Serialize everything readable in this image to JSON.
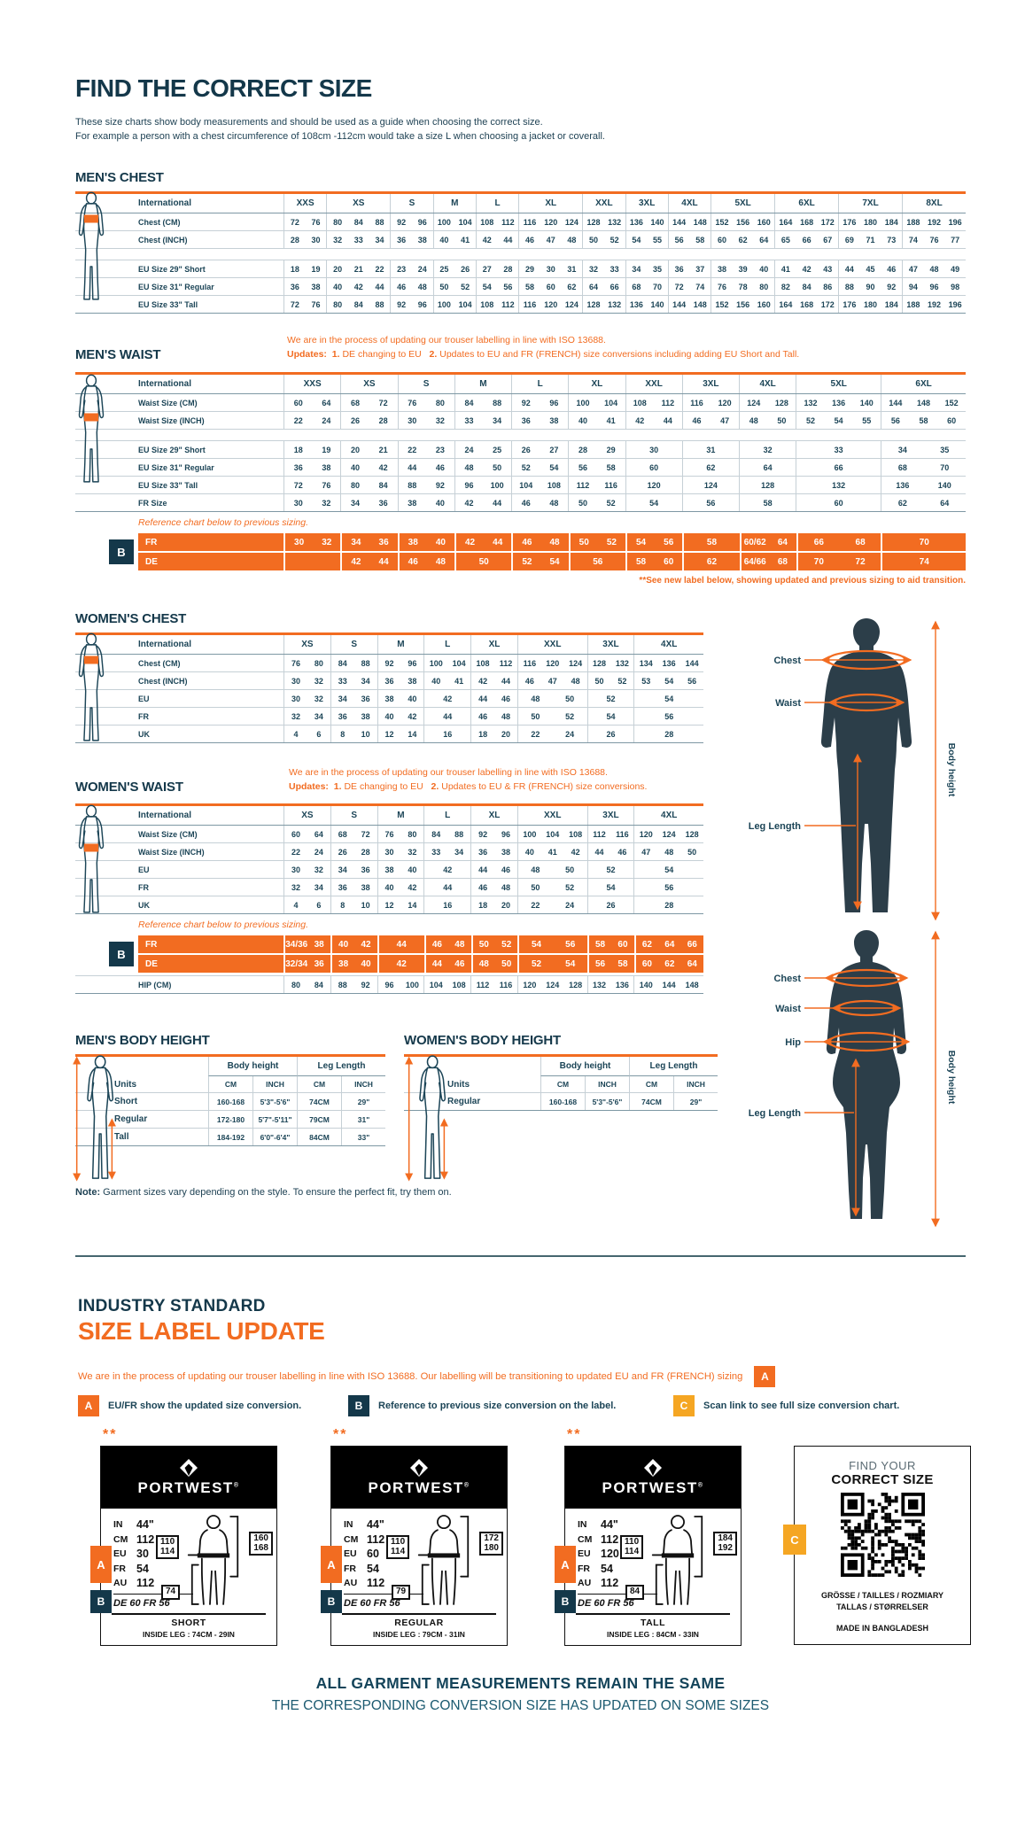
{
  "page": {
    "title": "FIND THE CORRECT SIZE",
    "intro1": "These size charts show body measurements and should be used as a guide when choosing the correct size.",
    "intro2": "For example a person with a chest circumference of 108cm -112cm would take a size L when choosing a jacket or coverall.",
    "note_bold": "Note:",
    "note_rest": " Garment sizes vary depending on the style. To ensure the perfect fit, try them on."
  },
  "colors": {
    "navy": "#14384A",
    "orange": "#F26C21",
    "amber": "#F5A623",
    "line_light": "#C6D0D6",
    "line_dark": "#7E98A4"
  },
  "mens_chest": {
    "title": "MEN'S CHEST",
    "header_label": "International",
    "columns": [
      "XXS",
      "XS",
      "S",
      "M",
      "L",
      "XL",
      "XXL",
      "3XL",
      "4XL",
      "5XL",
      "6XL",
      "7XL",
      "8XL"
    ],
    "spans": [
      2,
      3,
      2,
      2,
      2,
      3,
      2,
      2,
      2,
      3,
      3,
      3,
      3
    ],
    "rows": [
      {
        "label": "Chest (CM)",
        "cells": [
          "72 76",
          "80 84 88",
          "92 96",
          "100 104",
          "108 112",
          "116 120 124",
          "128 132",
          "136 140",
          "144 148",
          "152 156 160",
          "164 168 172",
          "176 180 184",
          "188 192 196"
        ]
      },
      {
        "label": "Chest (INCH)",
        "cells": [
          "28 30",
          "32 33 34",
          "36 38",
          "40 41",
          "42 44",
          "46 47 48",
          "50 52",
          "54 55",
          "56 58",
          "60 62 64",
          "65 66 67",
          "69 71 73",
          "74 76 77"
        ]
      },
      {
        "spacer": true
      },
      {
        "label": "EU Size 29\" Short",
        "cells": [
          "18 19",
          "20 21 22",
          "23 24",
          "25 26",
          "27 28",
          "29 30 31",
          "32 33",
          "34 35",
          "36 37",
          "38 39 40",
          "41 42 43",
          "44 45 46",
          "47 48 49"
        ]
      },
      {
        "label": "EU Size 31\" Regular",
        "cells": [
          "36 38",
          "40 42 44",
          "46 48",
          "50 52",
          "54 56",
          "58 60 62",
          "64 66",
          "68 70",
          "72 74",
          "76 78 80",
          "82 84 86",
          "88 90 92",
          "94 96 98"
        ]
      },
      {
        "label": "EU Size 33\" Tall",
        "cells": [
          "72 76",
          "80 84 88",
          "92 96",
          "100 104",
          "108 112",
          "116 120 124",
          "128 132",
          "136 140",
          "144 148",
          "152 156 160",
          "164 168 172",
          "176 180 184",
          "188 192 196"
        ]
      }
    ]
  },
  "mens_waist": {
    "title": "MEN'S WAIST",
    "note1": "We are in the process of updating our trouser labelling in line with ISO 13688.",
    "updates_label": "Updates:",
    "u1n": "1.",
    "u1": "DE changing to EU",
    "u2n": "2.",
    "u2": "Updates to EU and FR (FRENCH) size conversions including adding EU Short and Tall.",
    "header_label": "International",
    "columns": [
      "XXS",
      "XS",
      "S",
      "M",
      "L",
      "XL",
      "XXL",
      "3XL",
      "4XL",
      "5XL",
      "6XL"
    ],
    "spans": [
      2,
      2,
      2,
      2,
      2,
      2,
      2,
      2,
      2,
      3,
      3
    ],
    "rows": [
      {
        "label": "Waist Size (CM)",
        "cells": [
          "60 64",
          "68 72",
          "76 80",
          "84 88",
          "92 96",
          "100 104",
          "108 112",
          "116 120",
          "124 128",
          "132 136 140",
          "144 148 152"
        ]
      },
      {
        "label": "Waist Size (INCH)",
        "cells": [
          "22 24",
          "26 28",
          "30 32",
          "33 34",
          "36 38",
          "40 41",
          "42 44",
          "46 47",
          "48 50",
          "52 54 55",
          "56 58 60"
        ]
      },
      {
        "spacer": true
      },
      {
        "label": "EU Size 29\" Short",
        "cells": [
          "18 19",
          "20 21",
          "22 23",
          "24 25",
          "26 27",
          "28 29",
          "30",
          "31",
          "32",
          "33",
          "34 35"
        ]
      },
      {
        "label": "EU Size 31\" Regular",
        "cells": [
          "36 38",
          "40 42",
          "44 46",
          "48 50",
          "52 54",
          "56 58",
          "60",
          "62",
          "64",
          "66",
          "68 70"
        ]
      },
      {
        "label": "EU Size 33\" Tall",
        "cells": [
          "72 76",
          "80 84",
          "88 92",
          "96 100",
          "104 108",
          "112 116",
          "120",
          "124",
          "128",
          "132",
          "136 140"
        ]
      },
      {
        "label": "FR Size",
        "cells": [
          "30 32",
          "34 36",
          "38 40",
          "42 44",
          "46 48",
          "50 52",
          "54",
          "56",
          "58",
          "60",
          "62 64"
        ]
      }
    ],
    "ref_note": "Reference chart below to previous sizing.",
    "badge": "B",
    "orange_rows": [
      {
        "label": "FR",
        "cells": [
          "30 32",
          "34 36",
          "38 40",
          "42 44",
          "46 48",
          "50 52",
          "54 56",
          "58",
          "60/62 64",
          "66 68",
          "70"
        ]
      },
      {
        "label": "DE",
        "cells": [
          "",
          "42 44",
          "46 48",
          "50",
          "52 54",
          "56",
          "58 60",
          "62",
          "64/66 68",
          "70 72",
          "74"
        ]
      }
    ],
    "footnote": "**See new label below, showing updated and previous sizing to aid transition."
  },
  "womens_chest": {
    "title": "WOMEN'S CHEST",
    "header_label": "International",
    "columns": [
      "XS",
      "S",
      "M",
      "L",
      "XL",
      "XXL",
      "3XL",
      "4XL"
    ],
    "spans": [
      2,
      2,
      2,
      2,
      2,
      3,
      2,
      3
    ],
    "rows": [
      {
        "label": "Chest (CM)",
        "cells": [
          "76 80",
          "84 88",
          "92 96",
          "100 104",
          "108 112",
          "116 120 124",
          "128 132",
          "134 136 144"
        ]
      },
      {
        "label": "Chest (INCH)",
        "cells": [
          "30 32",
          "33 34",
          "36 38",
          "40 41",
          "42 44",
          "46 47 48",
          "50 52",
          "53 54 56"
        ]
      },
      {
        "label": "EU",
        "cells": [
          "30 32",
          "34 36",
          "38 40",
          "42",
          "44 46",
          "48 50",
          "52",
          "54"
        ]
      },
      {
        "label": "FR",
        "cells": [
          "32 34",
          "36 38",
          "40 42",
          "44",
          "46 48",
          "50 52",
          "54",
          "56"
        ]
      },
      {
        "label": "UK",
        "cells": [
          "4 6",
          "8 10",
          "12 14",
          "16",
          "18 20",
          "22 24",
          "26",
          "28"
        ]
      }
    ]
  },
  "womens_waist": {
    "title": "WOMEN'S WAIST",
    "note1": "We are in the process of updating our trouser labelling in line with ISO 13688.",
    "updates_label": "Updates:",
    "u1n": "1.",
    "u1": "DE changing to EU",
    "u2n": "2.",
    "u2": "Updates to EU & FR (FRENCH) size conversions.",
    "header_label": "International",
    "columns": [
      "XS",
      "S",
      "M",
      "L",
      "XL",
      "XXL",
      "3XL",
      "4XL"
    ],
    "spans": [
      2,
      2,
      2,
      2,
      2,
      3,
      2,
      3
    ],
    "rows": [
      {
        "label": "Waist Size (CM)",
        "cells": [
          "60 64",
          "68 72",
          "76 80",
          "84 88",
          "92 96",
          "100 104 108",
          "112 116",
          "120 124 128"
        ]
      },
      {
        "label": "Waist Size (INCH)",
        "cells": [
          "22 24",
          "26 28",
          "30 32",
          "33 34",
          "36 38",
          "40 41 42",
          "44 46",
          "47 48 50"
        ]
      },
      {
        "label": "EU",
        "cells": [
          "30 32",
          "34 36",
          "38 40",
          "42",
          "44 46",
          "48 50",
          "52",
          "54"
        ]
      },
      {
        "label": "FR",
        "cells": [
          "32 34",
          "36 38",
          "40 42",
          "44",
          "46 48",
          "50 52",
          "54",
          "56"
        ]
      },
      {
        "label": "UK",
        "cells": [
          "4 6",
          "8 10",
          "12 14",
          "16",
          "18 20",
          "22 24",
          "26",
          "28"
        ]
      }
    ],
    "ref_note": "Reference chart below to previous sizing.",
    "badge": "B",
    "orange_rows": [
      {
        "label": "FR",
        "cells": [
          "34/36 38",
          "40 42",
          "44",
          "46 48",
          "50 52",
          "54 56",
          "58 60",
          "62 64 66"
        ]
      },
      {
        "label": "DE",
        "cells": [
          "32/34 36",
          "38 40",
          "42",
          "44 46",
          "48 50",
          "52 54",
          "56 58",
          "60 62 64"
        ]
      }
    ],
    "after_rows": [
      {
        "label": "HIP (CM)",
        "cells": [
          "80 84",
          "88 92",
          "96 100",
          "104 108",
          "112 116",
          "120 124 128",
          "132 136",
          "140 144 148"
        ]
      }
    ]
  },
  "mens_height": {
    "title": "MEN'S BODY HEIGHT",
    "group1": "Body height",
    "group2": "Leg Length",
    "units_label": "Units",
    "units": [
      "CM",
      "INCH",
      "CM",
      "INCH"
    ],
    "rows": [
      {
        "label": "Short",
        "cells": [
          "160-168",
          "5'3\"-5'6\"",
          "74CM",
          "29\""
        ]
      },
      {
        "label": "Regular",
        "cells": [
          "172-180",
          "5'7\"-5'11\"",
          "79CM",
          "31\""
        ]
      },
      {
        "label": "Tall",
        "cells": [
          "184-192",
          "6'0\"-6'4\"",
          "84CM",
          "33\""
        ]
      }
    ]
  },
  "womens_height": {
    "title": "WOMEN'S BODY HEIGHT",
    "group1": "Body height",
    "group2": "Leg Length",
    "units_label": "Units",
    "units": [
      "CM",
      "INCH",
      "CM",
      "INCH"
    ],
    "rows": [
      {
        "label": "Regular",
        "cells": [
          "160-168",
          "5'3\"-5'6\"",
          "74CM",
          "29\""
        ]
      }
    ]
  },
  "diagram_male": {
    "chest": "Chest",
    "waist": "Waist",
    "leg": "Leg Length",
    "height": "Body height"
  },
  "diagram_female": {
    "chest": "Chest",
    "waist": "Waist",
    "hip": "Hip",
    "leg": "Leg Length",
    "height": "Body height"
  },
  "update_section": {
    "heading1": "INDUSTRY STANDARD",
    "heading2": "SIZE LABEL UPDATE",
    "paragraph": "We are in the process of updating our trouser labelling in line with ISO 13688. Our labelling will be transitioning to updated EU and FR (FRENCH) sizing",
    "badge_a": "A",
    "legend": [
      {
        "badge": "A",
        "text": "EU/FR show the updated size conversion."
      },
      {
        "badge": "B",
        "text": "Reference to previous size conversion on the label."
      },
      {
        "badge": "C",
        "text": "Scan link to see full size conversion chart."
      }
    ]
  },
  "cards": [
    {
      "stars": "**",
      "brand": "PORTWEST",
      "rows": [
        [
          "IN",
          "44\""
        ],
        [
          "CM",
          "112"
        ],
        [
          "EU",
          "30"
        ],
        [
          "FR",
          "54"
        ],
        [
          "AU",
          "112"
        ]
      ],
      "prev": "DE 60 FR 56",
      "waist_vals": "110\n114",
      "height_vals": "160\n168",
      "leg_val": "74",
      "size_name": "SHORT",
      "inside_leg": "INSIDE LEG : 74CM - 29IN",
      "badge_a": "A",
      "badge_b": "B"
    },
    {
      "stars": "**",
      "brand": "PORTWEST",
      "rows": [
        [
          "IN",
          "44\""
        ],
        [
          "CM",
          "112"
        ],
        [
          "EU",
          "60"
        ],
        [
          "FR",
          "54"
        ],
        [
          "AU",
          "112"
        ]
      ],
      "prev": "DE 60 FR 56",
      "waist_vals": "110\n114",
      "height_vals": "172\n180",
      "leg_val": "79",
      "size_name": "REGULAR",
      "inside_leg": "INSIDE LEG : 79CM - 31IN",
      "badge_a": "A",
      "badge_b": "B"
    },
    {
      "stars": "**",
      "brand": "PORTWEST",
      "rows": [
        [
          "IN",
          "44\""
        ],
        [
          "CM",
          "112"
        ],
        [
          "EU",
          "120"
        ],
        [
          "FR",
          "54"
        ],
        [
          "AU",
          "112"
        ]
      ],
      "prev": "DE 60 FR 56",
      "waist_vals": "110\n114",
      "height_vals": "184\n192",
      "leg_val": "84",
      "size_name": "TALL",
      "inside_leg": "INSIDE LEG : 84CM - 33IN",
      "badge_a": "A",
      "badge_b": "B"
    }
  ],
  "qr_card": {
    "line1": "FIND YOUR",
    "line2": "CORRECT SIZE",
    "langs1": "GRÖSSE / TAILLES / ROZMIARY",
    "langs2": "TALLAS / STØRRELSER",
    "made": "MADE IN BANGLADESH",
    "badge": "C"
  },
  "footer": {
    "line1": "ALL GARMENT MEASUREMENTS REMAIN THE SAME",
    "line2": "THE CORRESPONDING CONVERSION SIZE HAS UPDATED ON SOME SIZES"
  }
}
